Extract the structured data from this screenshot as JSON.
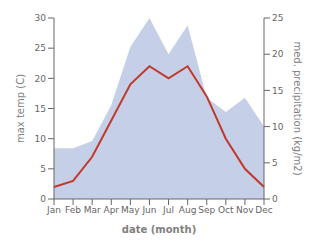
{
  "chart_data": {
    "type": "line",
    "categories": [
      "Jan",
      "Feb",
      "Mar",
      "Apr",
      "May",
      "Jun",
      "Jul",
      "Aug",
      "Sep",
      "Oct",
      "Nov",
      "Dec"
    ],
    "x_label": "date (month)",
    "y_label": "max temp (C)",
    "y2_label": "med. precipitation (kg/m2)",
    "series": [
      {
        "type": "area",
        "axis": "y2",
        "color": "#c5cfe8",
        "values": [
          7,
          7,
          8,
          13,
          21,
          25,
          20,
          24,
          14,
          12,
          14,
          10
        ]
      },
      {
        "type": "line",
        "color": "#c0392b",
        "values": [
          2,
          3,
          7,
          13,
          19,
          22,
          20,
          22,
          17,
          10,
          5,
          2
        ]
      }
    ],
    "ylim": [
      0,
      30
    ],
    "yticks": [
      0,
      5,
      10,
      15,
      20,
      25,
      30
    ],
    "y2lim": [
      0,
      25
    ],
    "y2ticks": [
      0,
      5,
      10,
      15,
      20,
      25
    ],
    "grid": false
  }
}
